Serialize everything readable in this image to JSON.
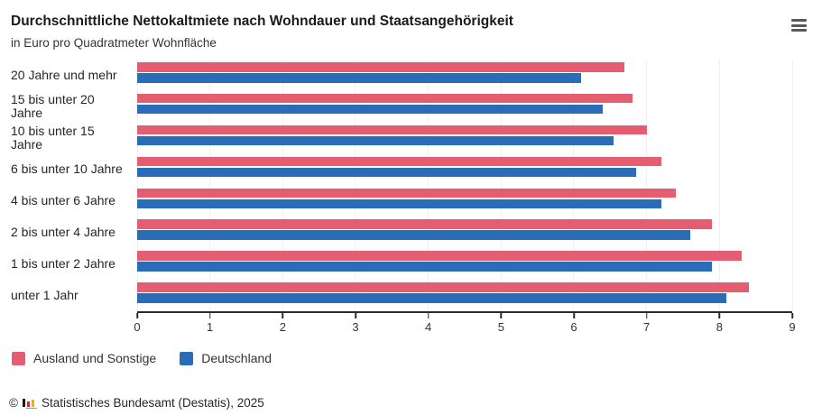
{
  "header": {
    "title": "Durchschnittliche Nettokaltmiete nach Wohndauer und Staatsangehörigkeit",
    "subtitle": "in Euro pro Quadratmeter Wohnfläche"
  },
  "menu": {
    "icon": "hamburger-menu"
  },
  "chart_data": {
    "type": "bar",
    "orientation": "horizontal",
    "title": "Durchschnittliche Nettokaltmiete nach Wohndauer und Staatsangehörigkeit",
    "subtitle": "in Euro pro Quadratmeter Wohnfläche",
    "categories": [
      "20 Jahre und mehr",
      "15 bis unter 20 Jahre",
      "10 bis unter 15 Jahre",
      "6 bis unter 10 Jahre",
      "4 bis unter 6 Jahre",
      "2 bis unter 4 Jahre",
      "1 bis unter 2 Jahre",
      "unter 1 Jahr"
    ],
    "series": [
      {
        "name": "Ausland und Sonstige",
        "color": "#e55d70",
        "values": [
          6.7,
          6.8,
          7.0,
          7.2,
          7.4,
          7.9,
          8.3,
          8.4
        ]
      },
      {
        "name": "Deutschland",
        "color": "#2a6cb8",
        "values": [
          6.1,
          6.4,
          6.55,
          6.85,
          7.2,
          7.6,
          7.9,
          8.1
        ]
      }
    ],
    "xlabel": "",
    "ylabel": "",
    "xlim": [
      0,
      9
    ],
    "xticks": [
      0,
      1,
      2,
      3,
      4,
      5,
      6,
      7,
      8,
      9
    ],
    "grid": true,
    "gridline_color": "#f0f0f0",
    "axis_color": "#2b2b2b",
    "legend_position": "bottom"
  },
  "footer": {
    "copyright": "©",
    "source": "Statistisches Bundesamt (Destatis), 2025"
  }
}
